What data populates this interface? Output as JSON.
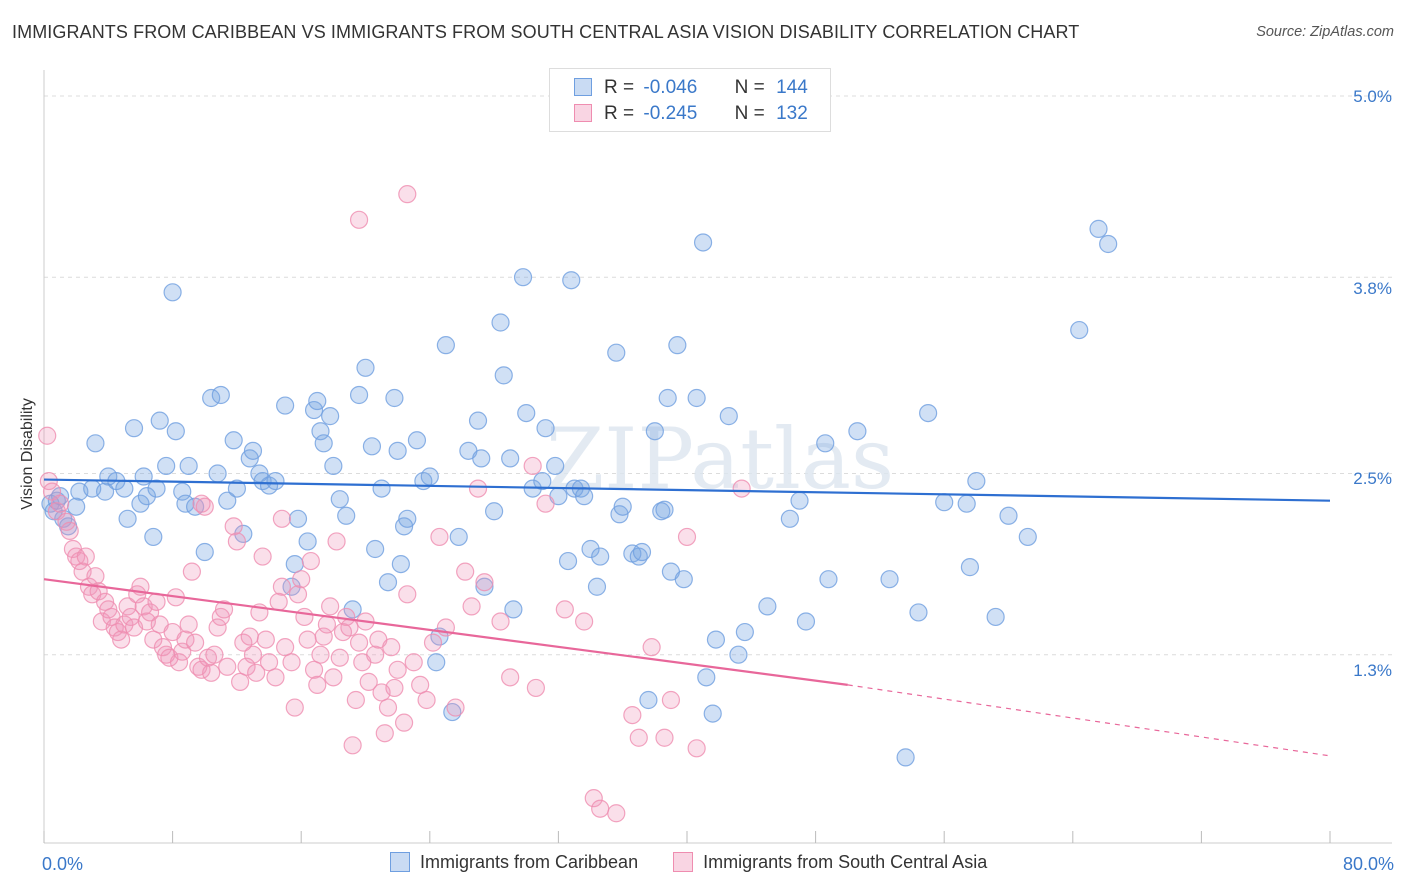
{
  "title": "IMMIGRANTS FROM CARIBBEAN VS IMMIGRANTS FROM SOUTH CENTRAL ASIA VISION DISABILITY CORRELATION CHART",
  "source": "Source: ZipAtlas.com",
  "watermark": "ZIPatlas",
  "legend_top": {
    "rows": [
      {
        "r_label": "R =",
        "r_value": "-0.046",
        "n_label": "N =",
        "n_value": "144"
      },
      {
        "r_label": "R =",
        "r_value": "-0.245",
        "n_label": "N =",
        "n_value": "132"
      }
    ]
  },
  "legend_bottom": {
    "items": [
      "Immigrants from Caribbean",
      "Immigrants from South Central Asia"
    ]
  },
  "x_axis": {
    "min_label": "0.0%",
    "max_label": "80.0%"
  },
  "y_axis": {
    "label": "Vision Disability",
    "ticks": [
      "5.0%",
      "3.8%",
      "2.5%",
      "1.3%"
    ]
  },
  "colors": {
    "blue": "#6f9fe0",
    "blue_fill": "rgba(120,165,225,0.35)",
    "blue_line": "#2e6fd1",
    "pink": "#ef8db0",
    "pink_fill": "rgba(240,150,185,0.30)",
    "pink_line": "#e8679a",
    "tick_text": "#3a78c9"
  },
  "chart_data": {
    "type": "scatter",
    "xlabel": "",
    "ylabel": "Vision Disability",
    "xlim": [
      0,
      80
    ],
    "ylim": [
      0,
      5.1
    ],
    "x_ticks": [
      0,
      8,
      16,
      24,
      32,
      40,
      48,
      56,
      64,
      72,
      80
    ],
    "y_ticks": [
      1.3,
      2.5,
      3.8,
      5.0
    ],
    "grid": "y dashed",
    "series": [
      {
        "name": "Immigrants from Caribbean",
        "r": -0.046,
        "n": 144,
        "trend": {
          "x": [
            0,
            80
          ],
          "y": [
            2.46,
            2.32
          ]
        },
        "points": [
          [
            0.4,
            2.3
          ],
          [
            0.6,
            2.25
          ],
          [
            0.8,
            2.32
          ],
          [
            1.0,
            2.35
          ],
          [
            1.2,
            2.2
          ],
          [
            1.5,
            2.15
          ],
          [
            2.0,
            2.28
          ],
          [
            2.2,
            2.38
          ],
          [
            3.0,
            2.4
          ],
          [
            3.2,
            2.7
          ],
          [
            3.8,
            2.38
          ],
          [
            4.0,
            2.48
          ],
          [
            4.5,
            2.45
          ],
          [
            5.0,
            2.4
          ],
          [
            5.2,
            2.2
          ],
          [
            5.6,
            2.8
          ],
          [
            6.0,
            2.3
          ],
          [
            6.2,
            2.48
          ],
          [
            6.4,
            2.35
          ],
          [
            6.8,
            2.08
          ],
          [
            7.0,
            2.4
          ],
          [
            7.2,
            2.85
          ],
          [
            7.6,
            2.55
          ],
          [
            8.0,
            3.7
          ],
          [
            8.2,
            2.78
          ],
          [
            8.6,
            2.38
          ],
          [
            8.8,
            2.3
          ],
          [
            9.0,
            2.55
          ],
          [
            9.4,
            2.28
          ],
          [
            10.0,
            1.98
          ],
          [
            10.4,
            3.0
          ],
          [
            10.8,
            2.5
          ],
          [
            11.0,
            3.02
          ],
          [
            11.4,
            2.32
          ],
          [
            11.8,
            2.72
          ],
          [
            12.0,
            2.4
          ],
          [
            12.4,
            2.1
          ],
          [
            12.8,
            2.6
          ],
          [
            13.0,
            2.65
          ],
          [
            13.4,
            2.5
          ],
          [
            13.6,
            2.45
          ],
          [
            14.0,
            2.42
          ],
          [
            14.4,
            2.45
          ],
          [
            15.0,
            2.95
          ],
          [
            15.4,
            1.75
          ],
          [
            15.6,
            1.9
          ],
          [
            15.8,
            2.2
          ],
          [
            16.4,
            2.05
          ],
          [
            16.8,
            2.92
          ],
          [
            17.0,
            2.98
          ],
          [
            17.2,
            2.78
          ],
          [
            17.4,
            2.7
          ],
          [
            17.8,
            2.88
          ],
          [
            18.0,
            2.55
          ],
          [
            18.4,
            2.33
          ],
          [
            18.8,
            2.22
          ],
          [
            19.2,
            1.6
          ],
          [
            19.6,
            3.02
          ],
          [
            20.0,
            3.2
          ],
          [
            20.4,
            2.68
          ],
          [
            20.6,
            2.0
          ],
          [
            21.0,
            2.4
          ],
          [
            21.4,
            1.78
          ],
          [
            21.8,
            3.0
          ],
          [
            22.0,
            2.65
          ],
          [
            22.2,
            1.9
          ],
          [
            22.4,
            2.15
          ],
          [
            22.6,
            2.2
          ],
          [
            23.2,
            2.72
          ],
          [
            23.6,
            2.45
          ],
          [
            24.0,
            2.48
          ],
          [
            24.4,
            1.25
          ],
          [
            24.6,
            1.42
          ],
          [
            25.0,
            3.35
          ],
          [
            25.4,
            0.92
          ],
          [
            25.8,
            2.08
          ],
          [
            26.4,
            2.65
          ],
          [
            27.0,
            2.85
          ],
          [
            27.2,
            2.6
          ],
          [
            27.4,
            1.75
          ],
          [
            28.0,
            2.25
          ],
          [
            28.4,
            3.5
          ],
          [
            28.6,
            3.15
          ],
          [
            29.0,
            2.6
          ],
          [
            29.2,
            1.6
          ],
          [
            29.8,
            3.8
          ],
          [
            30.0,
            2.9
          ],
          [
            30.4,
            2.4
          ],
          [
            31.0,
            2.45
          ],
          [
            31.2,
            2.8
          ],
          [
            31.8,
            2.55
          ],
          [
            32.0,
            2.35
          ],
          [
            32.6,
            1.92
          ],
          [
            32.8,
            3.78
          ],
          [
            33.0,
            2.4
          ],
          [
            33.4,
            2.4
          ],
          [
            33.6,
            2.35
          ],
          [
            34.0,
            2.0
          ],
          [
            34.4,
            1.75
          ],
          [
            34.6,
            1.95
          ],
          [
            35.6,
            3.3
          ],
          [
            35.8,
            2.23
          ],
          [
            36.0,
            2.28
          ],
          [
            36.6,
            1.97
          ],
          [
            37.0,
            1.95
          ],
          [
            37.2,
            1.98
          ],
          [
            37.6,
            1.0
          ],
          [
            38.0,
            2.78
          ],
          [
            38.4,
            2.25
          ],
          [
            38.6,
            2.26
          ],
          [
            38.8,
            3.0
          ],
          [
            39.0,
            1.85
          ],
          [
            39.4,
            3.35
          ],
          [
            39.8,
            1.8
          ],
          [
            40.6,
            3.0
          ],
          [
            41.0,
            4.03
          ],
          [
            41.2,
            1.15
          ],
          [
            41.6,
            0.91
          ],
          [
            41.8,
            1.4
          ],
          [
            42.6,
            2.88
          ],
          [
            43.2,
            1.3
          ],
          [
            43.6,
            1.45
          ],
          [
            45.0,
            1.62
          ],
          [
            46.4,
            2.2
          ],
          [
            47.0,
            2.32
          ],
          [
            47.4,
            1.52
          ],
          [
            48.6,
            2.7
          ],
          [
            48.8,
            1.8
          ],
          [
            50.6,
            2.78
          ],
          [
            52.6,
            1.8
          ],
          [
            53.6,
            0.62
          ],
          [
            54.4,
            1.58
          ],
          [
            55.0,
            2.9
          ],
          [
            56.0,
            2.31
          ],
          [
            57.4,
            2.3
          ],
          [
            57.6,
            1.88
          ],
          [
            58.0,
            2.45
          ],
          [
            59.2,
            1.55
          ],
          [
            60.0,
            2.22
          ],
          [
            61.2,
            2.08
          ],
          [
            64.4,
            3.45
          ],
          [
            65.6,
            4.12
          ],
          [
            66.2,
            4.02
          ]
        ]
      },
      {
        "name": "Immigrants from South Central Asia",
        "r": -0.245,
        "n": 132,
        "trend": {
          "x": [
            0,
            50
          ],
          "y": [
            1.8,
            1.1
          ]
        },
        "trend_dashed": {
          "x": [
            50,
            80
          ],
          "y": [
            1.1,
            0.63
          ]
        },
        "points": [
          [
            0.2,
            2.75
          ],
          [
            0.3,
            2.45
          ],
          [
            0.5,
            2.38
          ],
          [
            0.8,
            2.25
          ],
          [
            1.0,
            2.3
          ],
          [
            1.4,
            2.18
          ],
          [
            1.6,
            2.12
          ],
          [
            1.8,
            2.0
          ],
          [
            2.0,
            1.95
          ],
          [
            2.2,
            1.92
          ],
          [
            2.4,
            1.85
          ],
          [
            2.6,
            1.95
          ],
          [
            2.8,
            1.75
          ],
          [
            3.0,
            1.7
          ],
          [
            3.2,
            1.82
          ],
          [
            3.4,
            1.72
          ],
          [
            3.6,
            1.52
          ],
          [
            3.8,
            1.65
          ],
          [
            4.0,
            1.6
          ],
          [
            4.2,
            1.55
          ],
          [
            4.4,
            1.48
          ],
          [
            4.6,
            1.45
          ],
          [
            4.8,
            1.4
          ],
          [
            5.0,
            1.5
          ],
          [
            5.2,
            1.62
          ],
          [
            5.4,
            1.55
          ],
          [
            5.6,
            1.48
          ],
          [
            5.8,
            1.7
          ],
          [
            6.0,
            1.75
          ],
          [
            6.2,
            1.62
          ],
          [
            6.4,
            1.52
          ],
          [
            6.6,
            1.58
          ],
          [
            6.8,
            1.4
          ],
          [
            7.0,
            1.65
          ],
          [
            7.2,
            1.5
          ],
          [
            7.4,
            1.35
          ],
          [
            7.6,
            1.3
          ],
          [
            7.8,
            1.28
          ],
          [
            8.0,
            1.45
          ],
          [
            8.2,
            1.68
          ],
          [
            8.4,
            1.25
          ],
          [
            8.6,
            1.32
          ],
          [
            8.8,
            1.4
          ],
          [
            9.0,
            1.5
          ],
          [
            9.2,
            1.85
          ],
          [
            9.4,
            1.38
          ],
          [
            9.6,
            1.22
          ],
          [
            9.8,
            1.2
          ],
          [
            10.0,
            2.28
          ],
          [
            10.2,
            1.28
          ],
          [
            10.4,
            1.18
          ],
          [
            10.6,
            1.3
          ],
          [
            10.8,
            1.48
          ],
          [
            11.0,
            1.55
          ],
          [
            11.2,
            1.6
          ],
          [
            11.4,
            1.22
          ],
          [
            11.8,
            2.15
          ],
          [
            12.0,
            2.05
          ],
          [
            12.2,
            1.12
          ],
          [
            12.4,
            1.38
          ],
          [
            12.6,
            1.22
          ],
          [
            12.8,
            1.42
          ],
          [
            13.0,
            1.3
          ],
          [
            13.2,
            1.18
          ],
          [
            13.4,
            1.58
          ],
          [
            13.6,
            1.95
          ],
          [
            13.8,
            1.4
          ],
          [
            14.0,
            1.25
          ],
          [
            14.4,
            1.15
          ],
          [
            14.6,
            1.65
          ],
          [
            14.8,
            1.75
          ],
          [
            15.0,
            1.35
          ],
          [
            15.4,
            1.25
          ],
          [
            15.6,
            0.95
          ],
          [
            15.8,
            1.7
          ],
          [
            16.0,
            1.8
          ],
          [
            16.2,
            1.55
          ],
          [
            16.4,
            1.4
          ],
          [
            16.6,
            1.92
          ],
          [
            16.8,
            1.2
          ],
          [
            17.0,
            1.1
          ],
          [
            17.2,
            1.3
          ],
          [
            17.4,
            1.42
          ],
          [
            17.6,
            1.5
          ],
          [
            17.8,
            1.62
          ],
          [
            18.0,
            1.15
          ],
          [
            18.4,
            1.28
          ],
          [
            18.6,
            1.45
          ],
          [
            18.8,
            1.55
          ],
          [
            19.0,
            1.48
          ],
          [
            19.2,
            0.7
          ],
          [
            19.4,
            1.0
          ],
          [
            19.6,
            1.38
          ],
          [
            19.8,
            1.25
          ],
          [
            20.0,
            1.52
          ],
          [
            20.2,
            1.12
          ],
          [
            20.6,
            1.3
          ],
          [
            20.8,
            1.4
          ],
          [
            21.0,
            1.05
          ],
          [
            21.2,
            0.78
          ],
          [
            21.4,
            0.95
          ],
          [
            21.6,
            1.35
          ],
          [
            21.8,
            1.08
          ],
          [
            22.0,
            1.2
          ],
          [
            22.4,
            0.85
          ],
          [
            22.6,
            1.7
          ],
          [
            23.0,
            1.25
          ],
          [
            23.4,
            1.1
          ],
          [
            23.8,
            1.0
          ],
          [
            24.2,
            1.38
          ],
          [
            24.6,
            2.08
          ],
          [
            25.0,
            1.48
          ],
          [
            25.6,
            0.95
          ],
          [
            26.2,
            1.85
          ],
          [
            26.6,
            1.62
          ],
          [
            27.4,
            1.78
          ],
          [
            28.4,
            1.52
          ],
          [
            29.0,
            1.15
          ],
          [
            30.6,
            1.08
          ],
          [
            31.2,
            2.3
          ],
          [
            32.4,
            1.6
          ],
          [
            33.6,
            1.52
          ],
          [
            34.2,
            0.35
          ],
          [
            34.6,
            0.28
          ],
          [
            35.6,
            0.25
          ],
          [
            36.6,
            0.9
          ],
          [
            37.0,
            0.75
          ],
          [
            37.8,
            1.35
          ],
          [
            38.6,
            0.75
          ],
          [
            39.0,
            1.0
          ],
          [
            40.0,
            2.08
          ],
          [
            40.6,
            0.68
          ],
          [
            43.4,
            2.4
          ],
          [
            22.6,
            4.35
          ],
          [
            19.6,
            4.18
          ],
          [
            9.8,
            2.3
          ],
          [
            14.8,
            2.2
          ],
          [
            18.2,
            2.05
          ],
          [
            30.4,
            2.55
          ],
          [
            27.0,
            2.4
          ]
        ]
      }
    ]
  }
}
